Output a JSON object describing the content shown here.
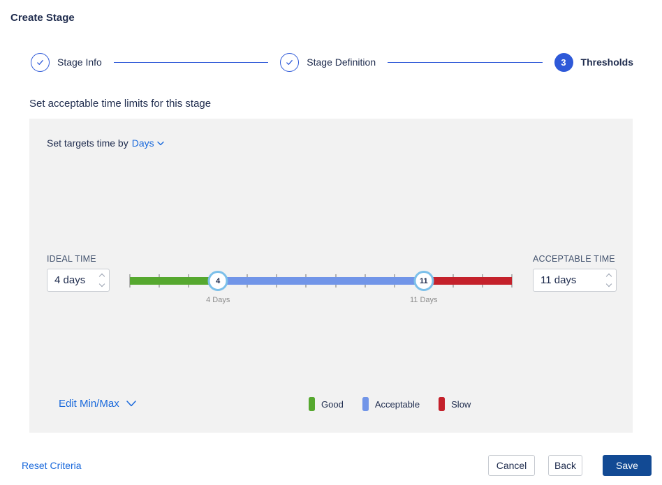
{
  "page_title": "Create Stage",
  "stepper": {
    "steps": [
      {
        "label": "Stage Info",
        "state": "complete"
      },
      {
        "label": "Stage Definition",
        "state": "complete"
      },
      {
        "label": "Thresholds",
        "state": "current",
        "number": "3"
      }
    ]
  },
  "section_heading": "Set acceptable time limits for this stage",
  "panel": {
    "target_time_label": "Set targets time by",
    "target_time_unit": "Days",
    "ideal": {
      "label": "IDEAL TIME",
      "value": "4 days"
    },
    "acceptable": {
      "label": "ACCEPTABLE TIME",
      "value": "11 days"
    },
    "edit_minmax_label": "Edit Min/Max",
    "legend": [
      {
        "label": "Good",
        "color": "#56A82F"
      },
      {
        "label": "Acceptable",
        "color": "#7195E8"
      },
      {
        "label": "Slow",
        "color": "#C4212B"
      }
    ]
  },
  "slider": {
    "min_day": 1,
    "max_day": 14,
    "ideal_day": 4,
    "acceptable_day": 11,
    "ideal_handle_label": "4",
    "acceptable_handle_label": "11",
    "ideal_caption": "4 Days",
    "acceptable_caption": "11 Days"
  },
  "footer": {
    "reset_label": "Reset Criteria",
    "cancel_label": "Cancel",
    "back_label": "Back",
    "save_label": "Save"
  },
  "colors": {
    "text-dark": "#1E2B4D",
    "text-muted": "#44546F",
    "caption-gray": "#8C8C8C",
    "link-blue": "#1868DB",
    "step-blue": "#2E59D8",
    "good-green": "#56A82F",
    "acceptable-blue": "#7195E8",
    "slow-red": "#C4212B",
    "handle-ring": "#7CC0EA",
    "tick-gray": "#B3B3B3",
    "panel-bg": "#F2F2F2",
    "save-bg": "#124A94",
    "border-gray": "#C7CBD1"
  }
}
